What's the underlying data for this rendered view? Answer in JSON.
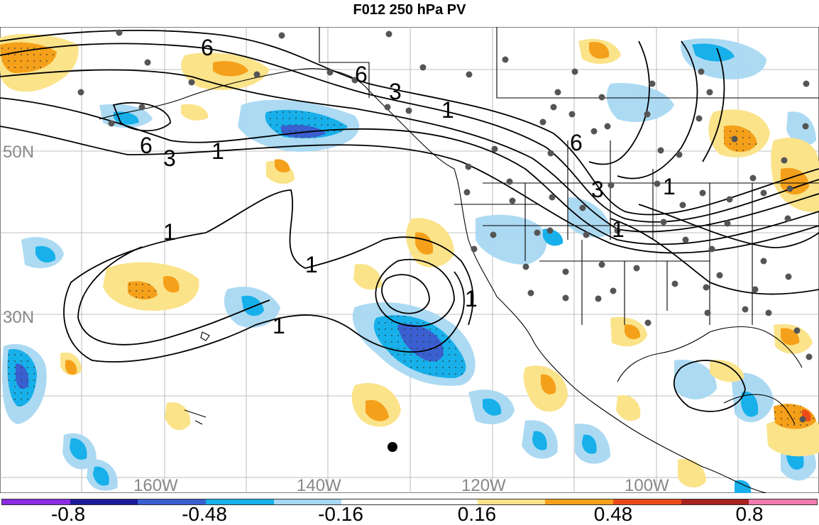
{
  "title": "F012 250 hPa PV",
  "lat_labels": [
    "50N",
    "30N"
  ],
  "lon_labels": [
    "160W",
    "140W",
    "120W",
    "100W"
  ],
  "contour_labels": [
    "6",
    "6",
    "3",
    "1",
    "6",
    "3",
    "1",
    "6",
    "3",
    "1",
    "1",
    "1",
    "1",
    "1",
    "1"
  ],
  "colorbar": {
    "colors": [
      "#8a2be2",
      "#1a1a9a",
      "#3a5fd0",
      "#17b0ea",
      "#a8d8f2",
      "#ffffff",
      "#ffffff",
      "#fbe38a",
      "#f5a01a",
      "#ec4a18",
      "#a8211e",
      "#f27ab0"
    ],
    "labels": [
      "-0.8",
      "-0.48",
      "-0.16",
      "0.16",
      "0.48",
      "0.8"
    ]
  }
}
